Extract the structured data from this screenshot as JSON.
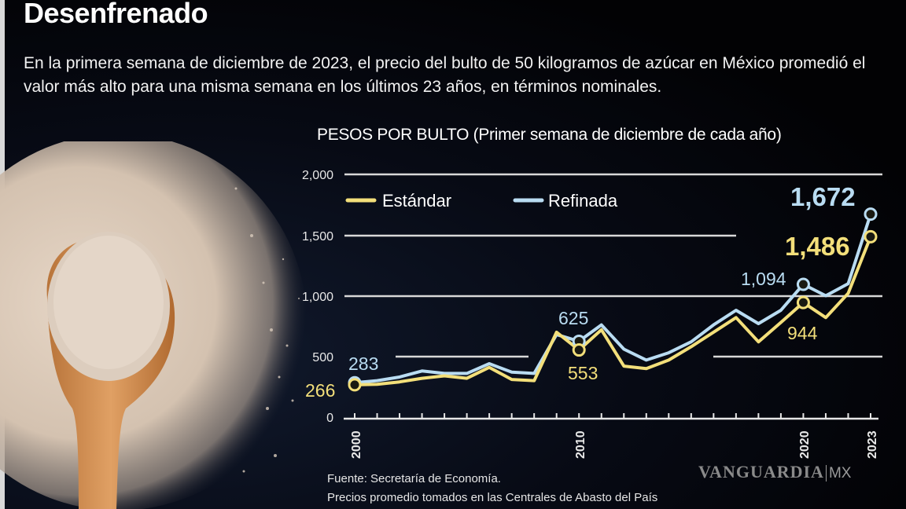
{
  "header": {
    "title": "Desenfrenado",
    "lede": "En la primera semana de diciembre de 2023, el precio del bulto de 50 kilogramos de azúcar en México promedió el valor más alto para una misma semana en los últimos 23 años, en términos nominales."
  },
  "chart_title": "PESOS POR BULTO (Primer semana de diciembre de cada año)",
  "legend": {
    "estandar": "Estándar",
    "refinada": "Refinada"
  },
  "colors": {
    "estandar": "#f3df7a",
    "refinada": "#b9dcf2",
    "gridline": "#d8d8d8",
    "background": "#030306"
  },
  "yaxis": {
    "ticks": [
      "2,000",
      "1,500",
      "1,000",
      "500",
      "0"
    ]
  },
  "xaxis": {
    "labels": [
      "2000",
      "2010",
      "2020",
      "2023"
    ]
  },
  "annotations": {
    "ref_2000": "283",
    "std_2000": "266",
    "ref_2010": "625",
    "std_2010": "553",
    "ref_2020": "1,094",
    "std_2020": "944",
    "ref_2023": "1,672",
    "std_2023": "1,486"
  },
  "footer": {
    "source": "Fuente: Secretaría de Economía.",
    "note": "Precios promedio tomados en las Centrales de Abasto del País",
    "watermark": "VANGUARDIA",
    "watermark_suffix": "MX"
  },
  "chart_data": {
    "type": "line",
    "title": "PESOS POR BULTO (Primer semana de diciembre de cada año)",
    "xlabel": "",
    "ylabel": "Pesos por bulto",
    "ylim": [
      0,
      2000
    ],
    "yticks": [
      0,
      500,
      1000,
      1500,
      2000
    ],
    "x": [
      2000,
      2001,
      2002,
      2003,
      2004,
      2005,
      2006,
      2007,
      2008,
      2009,
      2010,
      2011,
      2012,
      2013,
      2014,
      2015,
      2016,
      2017,
      2018,
      2019,
      2020,
      2021,
      2022,
      2023
    ],
    "series": [
      {
        "name": "Estándar",
        "color": "#f3df7a",
        "values": [
          266,
          270,
          290,
          320,
          340,
          320,
          410,
          310,
          300,
          700,
          553,
          720,
          420,
          400,
          470,
          580,
          700,
          820,
          620,
          780,
          944,
          820,
          1020,
          1486
        ]
      },
      {
        "name": "Refinada",
        "color": "#b9dcf2",
        "values": [
          283,
          300,
          330,
          380,
          360,
          360,
          440,
          370,
          360,
          680,
          625,
          760,
          560,
          470,
          530,
          620,
          760,
          880,
          770,
          880,
          1094,
          1000,
          1100,
          1672
        ]
      }
    ],
    "labeled_points": [
      {
        "series": "Refinada",
        "x": 2000,
        "y": 283
      },
      {
        "series": "Estándar",
        "x": 2000,
        "y": 266
      },
      {
        "series": "Refinada",
        "x": 2010,
        "y": 625
      },
      {
        "series": "Estándar",
        "x": 2010,
        "y": 553
      },
      {
        "series": "Refinada",
        "x": 2020,
        "y": 1094
      },
      {
        "series": "Estándar",
        "x": 2020,
        "y": 944
      },
      {
        "series": "Refinada",
        "x": 2023,
        "y": 1672
      },
      {
        "series": "Estándar",
        "x": 2023,
        "y": 1486
      }
    ],
    "legend_position": "top-left inside plot",
    "grid": "partial horizontal gridlines at 500, 1000, 1500, 2000",
    "source": "Fuente: Secretaría de Economía. Precios promedio tomados en las Centrales de Abasto del País"
  }
}
